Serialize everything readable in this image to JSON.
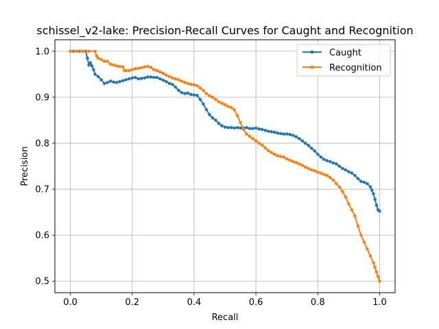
{
  "chart_data": {
    "type": "line",
    "title": "schissel_v2-lake: Precision-Recall Curves for Caught and Recognition",
    "xlabel": "Recall",
    "ylabel": "Precision",
    "xlim": [
      -0.05,
      1.05
    ],
    "ylim": [
      0.475,
      1.025
    ],
    "xticks": [
      {
        "value": 0.0,
        "label": "0.0"
      },
      {
        "value": 0.2,
        "label": "0.2"
      },
      {
        "value": 0.4,
        "label": "0.4"
      },
      {
        "value": 0.6,
        "label": "0.6"
      },
      {
        "value": 0.8,
        "label": "0.8"
      },
      {
        "value": 1.0,
        "label": "1.0"
      }
    ],
    "yticks": [
      {
        "value": 0.5,
        "label": "0.5"
      },
      {
        "value": 0.6,
        "label": "0.6"
      },
      {
        "value": 0.7,
        "label": "0.7"
      },
      {
        "value": 0.8,
        "label": "0.8"
      },
      {
        "value": 0.9,
        "label": "0.9"
      },
      {
        "value": 1.0,
        "label": "1.0"
      }
    ],
    "grid": true,
    "legend_position": "top-right",
    "series": [
      {
        "name": "Caught",
        "color": "#1f77b4",
        "points": [
          [
            0.0,
            1.0
          ],
          [
            0.01,
            1.0
          ],
          [
            0.02,
            1.0
          ],
          [
            0.03,
            1.0
          ],
          [
            0.04,
            1.0
          ],
          [
            0.05,
            1.0
          ],
          [
            0.055,
            0.985
          ],
          [
            0.06,
            0.97
          ],
          [
            0.065,
            0.975
          ],
          [
            0.07,
            0.968
          ],
          [
            0.075,
            0.96
          ],
          [
            0.08,
            0.95
          ],
          [
            0.09,
            0.945
          ],
          [
            0.1,
            0.938
          ],
          [
            0.11,
            0.93
          ],
          [
            0.12,
            0.932
          ],
          [
            0.13,
            0.935
          ],
          [
            0.14,
            0.933
          ],
          [
            0.15,
            0.932
          ],
          [
            0.16,
            0.934
          ],
          [
            0.17,
            0.936
          ],
          [
            0.18,
            0.938
          ],
          [
            0.19,
            0.94
          ],
          [
            0.2,
            0.942
          ],
          [
            0.21,
            0.943
          ],
          [
            0.22,
            0.94
          ],
          [
            0.23,
            0.941
          ],
          [
            0.24,
            0.942
          ],
          [
            0.25,
            0.944
          ],
          [
            0.26,
            0.944
          ],
          [
            0.27,
            0.943
          ],
          [
            0.28,
            0.943
          ],
          [
            0.29,
            0.94
          ],
          [
            0.3,
            0.937
          ],
          [
            0.31,
            0.934
          ],
          [
            0.32,
            0.93
          ],
          [
            0.33,
            0.928
          ],
          [
            0.34,
            0.922
          ],
          [
            0.35,
            0.915
          ],
          [
            0.36,
            0.91
          ],
          [
            0.37,
            0.908
          ],
          [
            0.38,
            0.909
          ],
          [
            0.39,
            0.906
          ],
          [
            0.4,
            0.905
          ],
          [
            0.41,
            0.904
          ],
          [
            0.42,
            0.895
          ],
          [
            0.43,
            0.885
          ],
          [
            0.44,
            0.873
          ],
          [
            0.45,
            0.862
          ],
          [
            0.46,
            0.855
          ],
          [
            0.47,
            0.85
          ],
          [
            0.48,
            0.843
          ],
          [
            0.49,
            0.838
          ],
          [
            0.5,
            0.835
          ],
          [
            0.51,
            0.834
          ],
          [
            0.52,
            0.834
          ],
          [
            0.53,
            0.833
          ],
          [
            0.54,
            0.834
          ],
          [
            0.55,
            0.833
          ],
          [
            0.56,
            0.833
          ],
          [
            0.57,
            0.834
          ],
          [
            0.58,
            0.832
          ],
          [
            0.59,
            0.832
          ],
          [
            0.6,
            0.833
          ],
          [
            0.61,
            0.831
          ],
          [
            0.62,
            0.83
          ],
          [
            0.63,
            0.828
          ],
          [
            0.64,
            0.826
          ],
          [
            0.65,
            0.825
          ],
          [
            0.66,
            0.824
          ],
          [
            0.67,
            0.822
          ],
          [
            0.68,
            0.821
          ],
          [
            0.69,
            0.82
          ],
          [
            0.7,
            0.82
          ],
          [
            0.71,
            0.819
          ],
          [
            0.72,
            0.817
          ],
          [
            0.73,
            0.814
          ],
          [
            0.74,
            0.81
          ],
          [
            0.75,
            0.805
          ],
          [
            0.76,
            0.8
          ],
          [
            0.77,
            0.795
          ],
          [
            0.78,
            0.789
          ],
          [
            0.79,
            0.783
          ],
          [
            0.8,
            0.776
          ],
          [
            0.81,
            0.77
          ],
          [
            0.82,
            0.765
          ],
          [
            0.83,
            0.762
          ],
          [
            0.84,
            0.76
          ],
          [
            0.85,
            0.757
          ],
          [
            0.86,
            0.755
          ],
          [
            0.87,
            0.75
          ],
          [
            0.88,
            0.745
          ],
          [
            0.89,
            0.742
          ],
          [
            0.9,
            0.738
          ],
          [
            0.91,
            0.735
          ],
          [
            0.92,
            0.73
          ],
          [
            0.93,
            0.723
          ],
          [
            0.94,
            0.717
          ],
          [
            0.95,
            0.715
          ],
          [
            0.96,
            0.712
          ],
          [
            0.97,
            0.705
          ],
          [
            0.975,
            0.698
          ],
          [
            0.98,
            0.69
          ],
          [
            0.985,
            0.678
          ],
          [
            0.99,
            0.665
          ],
          [
            0.995,
            0.655
          ],
          [
            1.0,
            0.652
          ]
        ]
      },
      {
        "name": "Recognition",
        "color": "#ff7f0e",
        "points": [
          [
            0.0,
            1.0
          ],
          [
            0.02,
            1.0
          ],
          [
            0.04,
            1.0
          ],
          [
            0.06,
            1.0
          ],
          [
            0.08,
            1.0
          ],
          [
            0.085,
            0.99
          ],
          [
            0.09,
            0.985
          ],
          [
            0.1,
            0.982
          ],
          [
            0.11,
            0.978
          ],
          [
            0.12,
            0.978
          ],
          [
            0.13,
            0.972
          ],
          [
            0.14,
            0.97
          ],
          [
            0.15,
            0.968
          ],
          [
            0.16,
            0.967
          ],
          [
            0.17,
            0.966
          ],
          [
            0.175,
            0.958
          ],
          [
            0.18,
            0.958
          ],
          [
            0.19,
            0.958
          ],
          [
            0.2,
            0.96
          ],
          [
            0.21,
            0.962
          ],
          [
            0.22,
            0.963
          ],
          [
            0.23,
            0.964
          ],
          [
            0.24,
            0.966
          ],
          [
            0.25,
            0.967
          ],
          [
            0.26,
            0.965
          ],
          [
            0.27,
            0.96
          ],
          [
            0.28,
            0.958
          ],
          [
            0.29,
            0.955
          ],
          [
            0.3,
            0.952
          ],
          [
            0.31,
            0.948
          ],
          [
            0.32,
            0.945
          ],
          [
            0.33,
            0.942
          ],
          [
            0.34,
            0.94
          ],
          [
            0.35,
            0.938
          ],
          [
            0.36,
            0.935
          ],
          [
            0.37,
            0.932
          ],
          [
            0.38,
            0.93
          ],
          [
            0.39,
            0.928
          ],
          [
            0.4,
            0.927
          ],
          [
            0.41,
            0.925
          ],
          [
            0.42,
            0.92
          ],
          [
            0.43,
            0.915
          ],
          [
            0.44,
            0.908
          ],
          [
            0.45,
            0.903
          ],
          [
            0.46,
            0.9
          ],
          [
            0.47,
            0.895
          ],
          [
            0.48,
            0.89
          ],
          [
            0.49,
            0.887
          ],
          [
            0.5,
            0.884
          ],
          [
            0.51,
            0.88
          ],
          [
            0.52,
            0.878
          ],
          [
            0.53,
            0.873
          ],
          [
            0.54,
            0.86
          ],
          [
            0.55,
            0.845
          ],
          [
            0.56,
            0.83
          ],
          [
            0.57,
            0.82
          ],
          [
            0.58,
            0.815
          ],
          [
            0.59,
            0.81
          ],
          [
            0.6,
            0.805
          ],
          [
            0.61,
            0.8
          ],
          [
            0.62,
            0.796
          ],
          [
            0.63,
            0.79
          ],
          [
            0.64,
            0.784
          ],
          [
            0.65,
            0.78
          ],
          [
            0.66,
            0.776
          ],
          [
            0.67,
            0.773
          ],
          [
            0.68,
            0.771
          ],
          [
            0.69,
            0.77
          ],
          [
            0.7,
            0.766
          ],
          [
            0.71,
            0.763
          ],
          [
            0.72,
            0.76
          ],
          [
            0.73,
            0.758
          ],
          [
            0.74,
            0.755
          ],
          [
            0.75,
            0.752
          ],
          [
            0.76,
            0.748
          ],
          [
            0.77,
            0.745
          ],
          [
            0.78,
            0.742
          ],
          [
            0.79,
            0.74
          ],
          [
            0.8,
            0.737
          ],
          [
            0.81,
            0.735
          ],
          [
            0.82,
            0.732
          ],
          [
            0.83,
            0.73
          ],
          [
            0.84,
            0.725
          ],
          [
            0.85,
            0.72
          ],
          [
            0.86,
            0.712
          ],
          [
            0.87,
            0.705
          ],
          [
            0.88,
            0.695
          ],
          [
            0.89,
            0.683
          ],
          [
            0.9,
            0.668
          ],
          [
            0.91,
            0.655
          ],
          [
            0.92,
            0.642
          ],
          [
            0.93,
            0.62
          ],
          [
            0.94,
            0.6
          ],
          [
            0.95,
            0.585
          ],
          [
            0.96,
            0.57
          ],
          [
            0.97,
            0.555
          ],
          [
            0.98,
            0.54
          ],
          [
            0.985,
            0.53
          ],
          [
            0.99,
            0.52
          ],
          [
            0.995,
            0.51
          ],
          [
            1.0,
            0.5
          ]
        ]
      }
    ]
  }
}
